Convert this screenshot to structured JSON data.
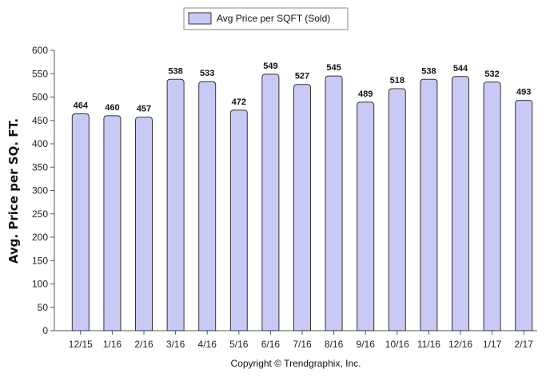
{
  "chart_data": {
    "type": "bar",
    "categories": [
      "12/15",
      "1/16",
      "2/16",
      "3/16",
      "4/16",
      "5/16",
      "6/16",
      "7/16",
      "8/16",
      "9/16",
      "10/16",
      "11/16",
      "12/16",
      "1/17",
      "2/17"
    ],
    "series": [
      {
        "name": "Avg Price per SQFT (Sold)",
        "values": [
          464,
          460,
          457,
          538,
          533,
          472,
          549,
          527,
          545,
          489,
          518,
          538,
          544,
          532,
          493
        ],
        "color": "#c9c9f5"
      }
    ],
    "ylabel": "Avg. Price per SQ. FT.",
    "xlabel": "",
    "ylim": [
      0,
      600
    ],
    "yticks": [
      0,
      50,
      100,
      150,
      200,
      250,
      300,
      350,
      400,
      450,
      500,
      550,
      600
    ],
    "grid": false,
    "legend_position": "top-center",
    "data_labels": true
  },
  "footer": {
    "copyright": "Copyright © Trendgraphix, Inc."
  },
  "colors": {
    "bar_fill": "#c9c9f5",
    "bar_stroke": "#333333",
    "axis": "#555555"
  }
}
